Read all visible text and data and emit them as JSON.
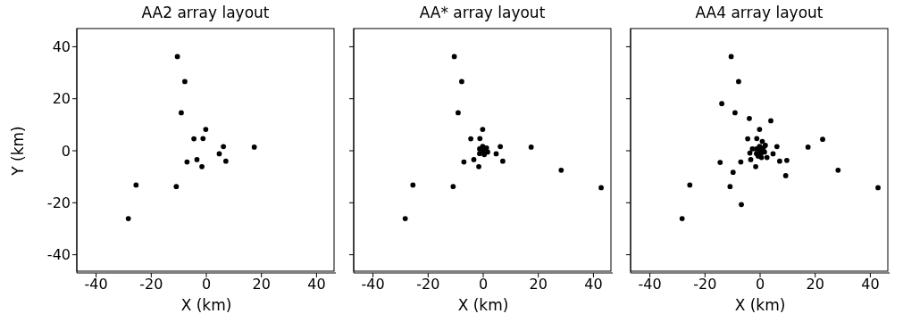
{
  "chart_data": [
    {
      "type": "scatter",
      "title": "AA2 array layout",
      "xlabel": "X (km)",
      "ylabel": "Y (km)",
      "color": "#000000",
      "marker": "circle",
      "x": [
        -10.5,
        -7.8,
        -9.1,
        -0.2,
        -4.5,
        -1.2,
        6.2,
        17.4,
        4.7,
        -3.4,
        -7.0,
        7.1,
        -1.6,
        -25.5,
        -10.9,
        -28.3
      ],
      "values": [
        36.2,
        26.6,
        14.6,
        8.2,
        4.6,
        4.7,
        1.6,
        1.4,
        -1.2,
        -3.4,
        -4.3,
        -4.0,
        -6.1,
        -13.2,
        -13.8,
        -26.1
      ],
      "xlim": [
        -47,
        47
      ],
      "ylim": [
        -47,
        47
      ],
      "xticks": [
        -40,
        -20,
        0,
        20,
        40
      ],
      "yticks": [
        -40,
        -20,
        0,
        20,
        40
      ]
    },
    {
      "type": "scatter",
      "title": "AA* array layout",
      "xlabel": "X (km)",
      "color": "#000000",
      "marker": "circle",
      "tick_labels": "x",
      "x": [
        -10.5,
        -7.8,
        -9.1,
        -0.2,
        -4.5,
        -1.2,
        6.2,
        17.4,
        4.7,
        -3.4,
        -7.0,
        7.1,
        -1.6,
        -25.5,
        -10.9,
        -28.3,
        28.3,
        42.8,
        -0.2,
        -1.3,
        1.6,
        0,
        1.2,
        -1.3,
        0.4
      ],
      "values": [
        36.2,
        26.6,
        14.6,
        8.2,
        4.6,
        4.7,
        1.6,
        1.4,
        -1.2,
        -3.4,
        -4.3,
        -4.0,
        -6.1,
        -13.2,
        -13.8,
        -26.1,
        -7.5,
        -14.2,
        1.7,
        -1.1,
        -0.5,
        0,
        1.1,
        0.7,
        -1.5
      ],
      "xlim": [
        -47,
        47
      ],
      "ylim": [
        -47,
        47
      ],
      "xticks": [
        -40,
        -20,
        0,
        20,
        40
      ],
      "yticks": [
        -40,
        -20,
        0,
        20,
        40
      ]
    },
    {
      "type": "scatter",
      "title": "AA4 array layout",
      "xlabel": "X (km)",
      "color": "#000000",
      "marker": "circle",
      "tick_labels": "x",
      "x": [
        -10.5,
        -7.8,
        -9.1,
        -0.2,
        -4.5,
        -1.2,
        6.1,
        17.4,
        4.7,
        -3.4,
        -7.0,
        7.1,
        -1.6,
        -25.5,
        -10.9,
        -28.3,
        28.3,
        42.8,
        -13.9,
        -3.9,
        3.9,
        22.7,
        0.8,
        -2.8,
        1.9,
        -3.7,
        -0.7,
        0.5,
        2.5,
        -14.5,
        9.7,
        -9.8,
        9.3,
        -6.8,
        -0.2,
        -1.3,
        1.6,
        0,
        1.2,
        -1.3,
        0.3
      ],
      "values": [
        36.2,
        26.6,
        14.6,
        8.2,
        4.6,
        4.7,
        1.6,
        1.4,
        -1.2,
        -3.4,
        -4.3,
        -4.0,
        -6.1,
        -13.2,
        -13.8,
        -26.1,
        -7.5,
        -14.2,
        18.1,
        12.4,
        11.5,
        4.4,
        3.6,
        0.7,
        2.1,
        -0.9,
        -2.1,
        -2.6,
        -2.6,
        -4.5,
        -3.7,
        -8.3,
        -9.6,
        -20.7,
        1.7,
        -1.1,
        -0.5,
        0,
        1.1,
        0.7,
        -1.0
      ],
      "xlim": [
        -47,
        47
      ],
      "ylim": [
        -47,
        47
      ],
      "xticks": [
        -40,
        -20,
        0,
        20,
        40
      ],
      "yticks": [
        -40,
        -20,
        0,
        20,
        40
      ]
    }
  ]
}
